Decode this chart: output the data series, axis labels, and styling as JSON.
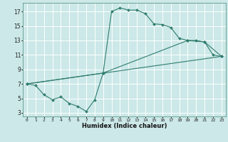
{
  "title": "",
  "xlabel": "Humidex (Indice chaleur)",
  "xlim": [
    -0.5,
    23.5
  ],
  "ylim": [
    2.5,
    18.2
  ],
  "xticks": [
    0,
    1,
    2,
    3,
    4,
    5,
    6,
    7,
    8,
    9,
    10,
    11,
    12,
    13,
    14,
    15,
    16,
    17,
    18,
    19,
    20,
    21,
    22,
    23
  ],
  "yticks": [
    3,
    5,
    7,
    9,
    11,
    13,
    15,
    17
  ],
  "bg_color": "#cce8e8",
  "line_color": "#2e7d6e",
  "grid_color": "#ffffff",
  "line1_x": [
    0,
    1,
    2,
    3,
    4,
    5,
    6,
    7,
    8,
    9,
    10,
    11,
    12,
    13,
    14,
    15,
    16,
    17,
    18,
    19,
    20,
    21,
    22,
    23
  ],
  "line1_y": [
    7.0,
    6.8,
    5.5,
    4.8,
    5.2,
    4.3,
    3.9,
    3.2,
    4.8,
    8.5,
    17.0,
    17.5,
    17.2,
    17.2,
    16.7,
    15.3,
    15.2,
    14.8,
    13.3,
    13.0,
    13.0,
    12.8,
    11.0,
    10.8
  ],
  "line2_x": [
    0,
    23
  ],
  "line2_y": [
    7.0,
    10.8
  ],
  "line3_x": [
    0,
    9,
    19,
    21,
    23
  ],
  "line3_y": [
    7.0,
    8.5,
    13.0,
    12.8,
    10.8
  ]
}
